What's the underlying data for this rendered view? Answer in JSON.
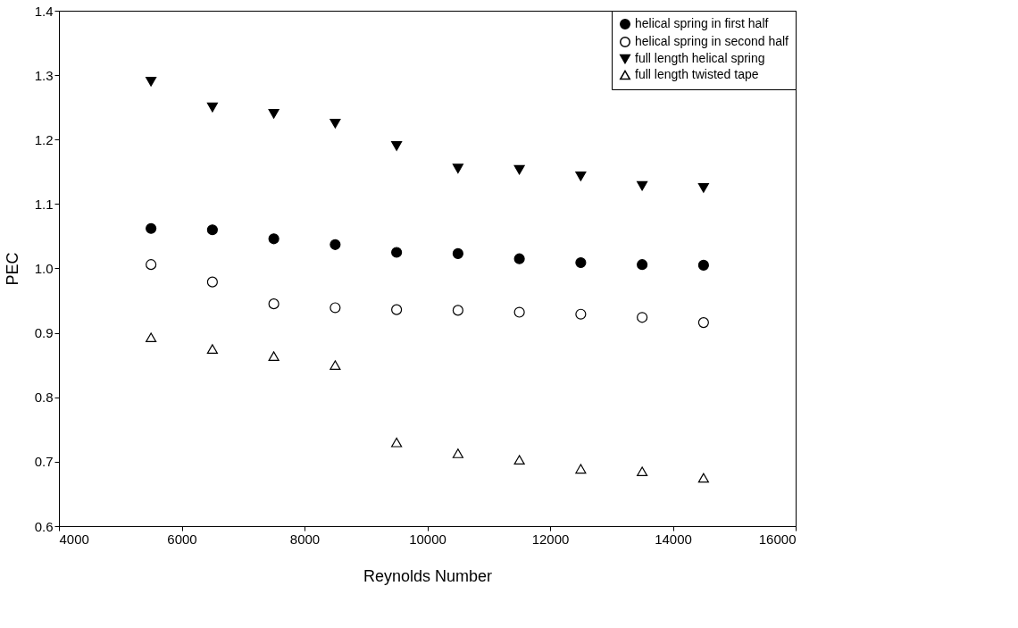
{
  "chart_data": {
    "type": "scatter",
    "xlabel": "Reynolds Number",
    "ylabel": "PEC",
    "x": [
      5500,
      6500,
      7500,
      8500,
      9500,
      10500,
      11500,
      12500,
      13500,
      14500
    ],
    "xlim": [
      4000,
      16000
    ],
    "xticks": [
      4000,
      6000,
      8000,
      10000,
      12000,
      14000,
      16000
    ],
    "ylim": [
      0.6,
      1.4
    ],
    "yticks": [
      0.6,
      0.7,
      0.8,
      0.9,
      {
        "value": 1,
        "label": "1.0"
      },
      1.1,
      1.2,
      1.3,
      1.4
    ],
    "grid": false,
    "legend": "top right",
    "series": [
      {
        "name": "helical spring in first half",
        "color": "#000000",
        "marker": "circle",
        "values": [
          1.062,
          1.06,
          1.046,
          1.037,
          1.025,
          1.023,
          1.015,
          1.009,
          1.006,
          1.005
        ]
      },
      {
        "name": "helical spring in second half",
        "color": "#ffffff",
        "marker": "circle",
        "values": [
          1.006,
          0.979,
          0.945,
          0.939,
          0.936,
          0.935,
          0.932,
          0.929,
          0.924,
          0.916
        ]
      },
      {
        "name": "full length helical spring",
        "color": "#000000",
        "marker": "triangle-down",
        "values": [
          1.29,
          1.25,
          1.24,
          1.225,
          1.19,
          1.155,
          1.153,
          1.143,
          1.128,
          1.125
        ]
      },
      {
        "name": "full length twisted tape",
        "color": "#ffffff",
        "marker": "triangle",
        "values": [
          0.893,
          0.875,
          0.864,
          0.85,
          0.73,
          0.713,
          0.703,
          0.689,
          0.685,
          0.675
        ]
      }
    ]
  }
}
